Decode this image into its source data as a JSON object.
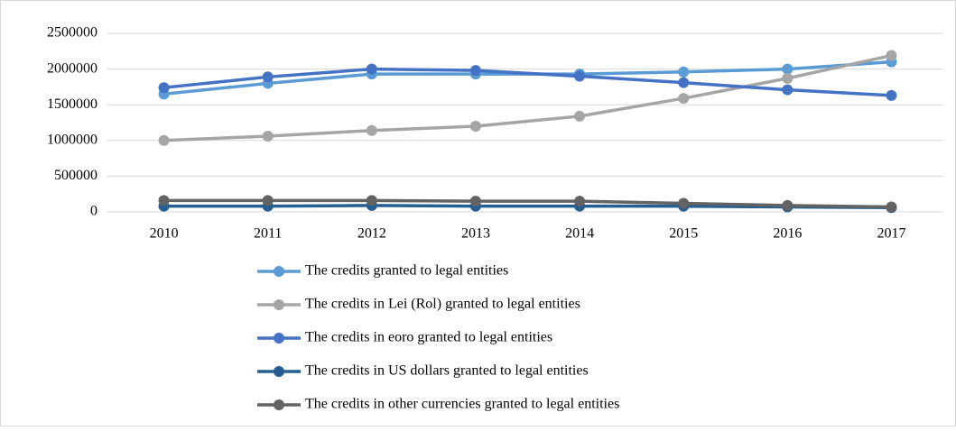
{
  "chart_data": {
    "type": "line",
    "categories": [
      "2010",
      "2011",
      "2012",
      "2013",
      "2014",
      "2015",
      "2016",
      "2017"
    ],
    "series": [
      {
        "name": "The credits granted to legal entities",
        "color": "#5b9bd5",
        "values": [
          1650000,
          1800000,
          1930000,
          1930000,
          1930000,
          1960000,
          2000000,
          2100000
        ]
      },
      {
        "name": "The credits in Lei (Rol) granted to legal entities",
        "color": "#a5a5a5",
        "values": [
          1000000,
          1060000,
          1140000,
          1200000,
          1340000,
          1590000,
          1870000,
          2190000
        ]
      },
      {
        "name": "The credits in eoro granted to legal entities",
        "color": "#4472c4",
        "values": [
          1740000,
          1890000,
          2000000,
          1980000,
          1900000,
          1810000,
          1710000,
          1630000
        ]
      },
      {
        "name": "The credits in US dollars granted to legal entities",
        "color": "#255e91",
        "values": [
          80000,
          80000,
          90000,
          80000,
          80000,
          80000,
          70000,
          60000
        ]
      },
      {
        "name": "The credits in other currencies granted to legal entities",
        "color": "#636363",
        "values": [
          160000,
          160000,
          160000,
          150000,
          150000,
          120000,
          90000,
          70000
        ]
      }
    ],
    "ylim": [
      0,
      2500000
    ],
    "yticks": [
      0,
      500000,
      1000000,
      1500000,
      2000000,
      2500000
    ],
    "grid": true
  }
}
